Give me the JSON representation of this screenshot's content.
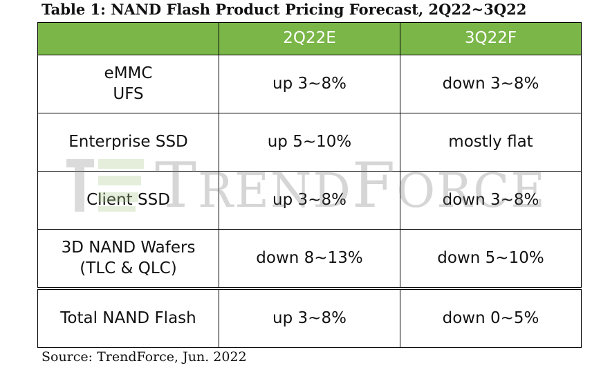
{
  "title": "Table 1: NAND Flash Product Pricing Forecast, 2Q22~3Q22",
  "table": {
    "headers": [
      "",
      "2Q22E",
      "3Q22F"
    ],
    "rows": [
      {
        "label_lines": [
          "eMMC",
          "UFS"
        ],
        "q2": "up 3~8%",
        "q3": "down 3~8%"
      },
      {
        "label_lines": [
          "Enterprise SSD"
        ],
        "q2": "up 5~10%",
        "q3": "mostly flat"
      },
      {
        "label_lines": [
          "Client SSD"
        ],
        "q2": "up 3~8%",
        "q3": "down 3~8%"
      },
      {
        "label_lines": [
          "3D NAND Wafers",
          "(TLC & QLC)"
        ],
        "q2": "down 8~13%",
        "q3": "down 5~10%"
      },
      {
        "label_lines": [
          "Total NAND Flash"
        ],
        "q2": "up 3~8%",
        "q3": "down 0~5%"
      }
    ]
  },
  "watermark": {
    "text_big_1": "T",
    "text_small_1": "REND",
    "text_big_2": "F",
    "text_small_2": "ORCE"
  },
  "source": "Source: TrendForce, Jun. 2022",
  "colors": {
    "header_bg": "#7ab648",
    "header_text": "#ffffff",
    "border": "#000000"
  }
}
